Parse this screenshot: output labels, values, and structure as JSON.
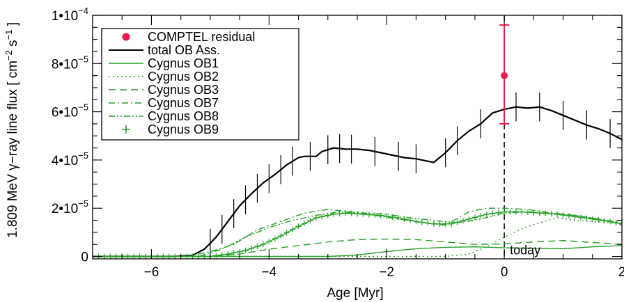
{
  "chart_data": {
    "type": "line",
    "xlabel": "Age [Myr]",
    "ylabel": {
      "prefix": "1.809 MeV ",
      "gamma": "γ",
      "middle": "−ray line flux [ cm",
      "exp1": "−2",
      "mid2": " s",
      "exp2": "−1",
      "suffix": " ]"
    },
    "xlim": [
      -7.0,
      2.0
    ],
    "ylim": [
      -1e-06,
      0.0001
    ],
    "xticks": [
      {
        "value": -6,
        "label": "−6"
      },
      {
        "value": -4,
        "label": "−4"
      },
      {
        "value": -2,
        "label": "−2"
      },
      {
        "value": 0,
        "label": "0"
      },
      {
        "value": 2,
        "label": "2"
      }
    ],
    "yticks": [
      {
        "value": 0,
        "label": "0",
        "mant": "0",
        "exp": ""
      },
      {
        "value": 2e-05,
        "label": "2•10−5",
        "mant": "2•10",
        "exp": "−5"
      },
      {
        "value": 4e-05,
        "label": "4•10−5",
        "mant": "4•10",
        "exp": "−5"
      },
      {
        "value": 6e-05,
        "label": "6•10−5",
        "mant": "6•10",
        "exp": "−5"
      },
      {
        "value": 8e-05,
        "label": "8•10−5",
        "mant": "8•10",
        "exp": "−5"
      },
      {
        "value": 0.0001,
        "label": "1•10−4",
        "mant": "1•10",
        "exp": "−4"
      }
    ],
    "legend_position": "top-left",
    "colors": {
      "total": "#000000",
      "cygnus": "#22a022",
      "comptel": "#e8194b"
    },
    "today_marker": {
      "x": 0,
      "label": "today"
    },
    "comptel_point": {
      "name": "COMPTEL residual",
      "x": 0.0,
      "y": 7.5e-05,
      "yerr_low": 5.5e-05,
      "yerr_high": 9.6e-05
    },
    "series": [
      {
        "name": "total OB Ass.",
        "style": "solid",
        "color": "#000000",
        "error_bars": true,
        "x": [
          -7.0,
          -6.0,
          -5.6,
          -5.3,
          -5.1,
          -4.9,
          -4.7,
          -4.5,
          -4.3,
          -4.1,
          -3.9,
          -3.7,
          -3.5,
          -3.4,
          -3.2,
          -3.1,
          -2.9,
          -2.7,
          -2.5,
          -2.3,
          -2.1,
          -1.9,
          -1.7,
          -1.5,
          -1.3,
          -1.2,
          -1.0,
          -0.8,
          -0.6,
          -0.4,
          -0.2,
          0.0,
          0.2,
          0.4,
          0.6,
          0.8,
          1.0,
          1.2,
          1.4,
          1.6,
          1.8,
          2.0
        ],
        "y": [
          0,
          0,
          0,
          5e-07,
          3e-06,
          8e-06,
          1.45e-05,
          2.1e-05,
          2.6e-05,
          3.05e-05,
          3.4e-05,
          3.8e-05,
          4.1e-05,
          4.15e-05,
          4.15e-05,
          4.35e-05,
          4.5e-05,
          4.45e-05,
          4.45e-05,
          4.4e-05,
          4.3e-05,
          4.2e-05,
          4.1e-05,
          4.05e-05,
          3.95e-05,
          3.9e-05,
          4.3e-05,
          4.8e-05,
          5.2e-05,
          5.5e-05,
          5.95e-05,
          6.1e-05,
          6.2e-05,
          6.15e-05,
          6.2e-05,
          6.05e-05,
          5.85e-05,
          5.65e-05,
          5.45e-05,
          5.3e-05,
          5.1e-05,
          4.85e-05
        ],
        "err": 6e-06,
        "err_x": [
          -5.0,
          -4.8,
          -4.6,
          -4.4,
          -4.2,
          -4.0,
          -3.8,
          -3.6,
          -3.3,
          -3.0,
          -2.8,
          -2.6,
          -2.2,
          -1.8,
          -1.5,
          -1.0,
          -0.8,
          -0.4,
          0.2,
          0.6,
          1.0,
          1.4,
          1.8
        ]
      },
      {
        "name": "Cygnus OB1",
        "style": "solid",
        "color": "#22a022",
        "x": [
          -7.0,
          -3.0,
          -2.5,
          -2.0,
          -1.5,
          -1.0,
          -0.5,
          0.0,
          0.5,
          1.0,
          1.5,
          2.0
        ],
        "y": [
          0,
          0,
          6e-07,
          2e-06,
          3.2e-06,
          3.8e-06,
          4e-06,
          3.6e-06,
          3.4e-06,
          3.2e-06,
          4e-06,
          4.5e-06
        ]
      },
      {
        "name": "Cygnus OB2",
        "style": "dotted",
        "color": "#22a022",
        "x": [
          -7.0,
          -1.0,
          -0.6,
          -0.3,
          0.0,
          0.3,
          0.6,
          0.9,
          1.2,
          1.5,
          1.8,
          2.0
        ],
        "y": [
          0,
          0,
          1e-06,
          4e-06,
          8e-06,
          1.15e-05,
          1.4e-05,
          1.6e-05,
          1.5e-05,
          1.45e-05,
          1.4e-05,
          1.3e-05
        ]
      },
      {
        "name": "Cygnus OB3",
        "style": "dashed",
        "color": "#22a022",
        "x": [
          -7.0,
          -5.0,
          -4.5,
          -4.0,
          -3.5,
          -3.0,
          -2.5,
          -2.0,
          -1.5,
          -1.0,
          -0.5,
          0.0,
          0.5,
          1.0,
          1.5,
          2.0
        ],
        "y": [
          0,
          0,
          1e-06,
          3e-06,
          4.5e-06,
          6e-06,
          7e-06,
          7.2e-06,
          7e-06,
          6e-06,
          5e-06,
          5.2e-06,
          6e-06,
          6.6e-06,
          5.8e-06,
          5e-06
        ]
      },
      {
        "name": "Cygnus OB7",
        "style": "dashdot",
        "color": "#22a022",
        "x": [
          -7.0,
          -5.4,
          -5.0,
          -4.6,
          -4.2,
          -3.8,
          -3.4,
          -3.0,
          -2.6,
          -2.2,
          -1.8,
          -1.4,
          -1.0,
          -0.6,
          -0.3,
          0.0,
          0.4,
          0.8,
          1.2,
          1.6,
          2.0
        ],
        "y": [
          0,
          0,
          2e-06,
          5e-06,
          1.1e-05,
          1.45e-05,
          1.8e-05,
          1.95e-05,
          1.85e-05,
          1.7e-05,
          1.55e-05,
          1.4e-05,
          1.3e-05,
          1.85e-05,
          2e-05,
          2e-05,
          1.95e-05,
          1.8e-05,
          1.7e-05,
          1.55e-05,
          1.4e-05
        ]
      },
      {
        "name": "Cygnus OB8",
        "style": "dashdotdot",
        "color": "#22a022",
        "x": [
          -7.0,
          -5.2,
          -4.8,
          -4.4,
          -4.0,
          -3.6,
          -3.2,
          -2.8,
          -2.4,
          -2.0,
          -1.6,
          -1.2,
          -0.8,
          -0.4,
          0.0,
          0.4,
          0.8,
          1.2,
          1.6,
          2.0
        ],
        "y": [
          0,
          0,
          3e-06,
          8e-06,
          1.2e-05,
          1.5e-05,
          1.7e-05,
          1.85e-05,
          1.8e-05,
          1.75e-05,
          1.6e-05,
          1.5e-05,
          1.4e-05,
          1.55e-05,
          1.8e-05,
          1.85e-05,
          1.8e-05,
          1.7e-05,
          1.55e-05,
          1.35e-05
        ]
      },
      {
        "name": "Cygnus OB9",
        "style": "plus",
        "color": "#22a022",
        "x": [
          -7.0,
          -5.0,
          -4.7,
          -4.4,
          -4.1,
          -3.8,
          -3.5,
          -3.2,
          -2.9,
          -2.7,
          -2.4,
          -2.1,
          -1.8,
          -1.5,
          -1.2,
          -0.9,
          -0.6,
          -0.3,
          0.0,
          0.3,
          0.6,
          0.9,
          1.2,
          1.5,
          1.8,
          2.0
        ],
        "y": [
          0,
          0,
          1e-06,
          2.5e-06,
          5e-06,
          8.5e-06,
          1.25e-05,
          1.6e-05,
          1.75e-05,
          1.8e-05,
          1.75e-05,
          1.7e-05,
          1.6e-05,
          1.45e-05,
          1.35e-05,
          1.35e-05,
          1.55e-05,
          1.75e-05,
          1.85e-05,
          1.85e-05,
          1.8e-05,
          1.75e-05,
          1.65e-05,
          1.55e-05,
          1.45e-05,
          1.35e-05
        ]
      }
    ]
  }
}
